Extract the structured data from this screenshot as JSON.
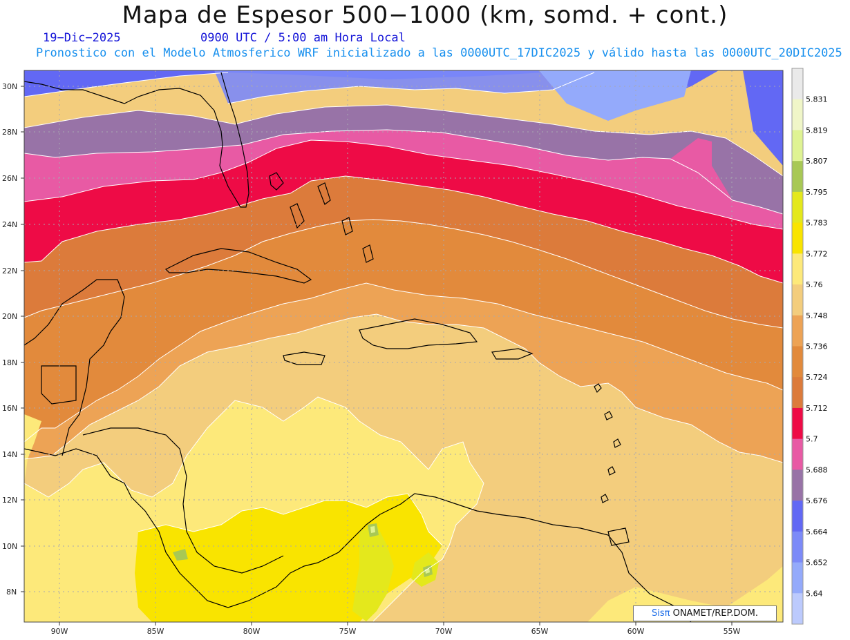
{
  "header": {
    "title": "Mapa de Espesor 500−1000 (km, somd. + cont.)",
    "date": "19−Dic−2025",
    "time": "0900 UTC / 5:00 am Hora Local",
    "model_info": "Pronostico con el Modelo Atmosferico WRF inicializado a las 0000UTC_17DIC2025 y válido hasta las  0000UTC_20DIC2025"
  },
  "axes": {
    "lat_labels": [
      "30N",
      "28N",
      "26N",
      "24N",
      "22N",
      "20N",
      "18N",
      "16N",
      "14N",
      "12N",
      "10N",
      "8N"
    ],
    "lon_labels": [
      "90W",
      "85W",
      "80W",
      "75W",
      "70W",
      "65W",
      "60W",
      "55W"
    ]
  },
  "colorbar": {
    "levels": [
      "5.831",
      "5.819",
      "5.807",
      "5.795",
      "5.783",
      "5.772",
      "5.76",
      "5.748",
      "5.736",
      "5.724",
      "5.712",
      "5.7",
      "5.688",
      "5.676",
      "5.664",
      "5.652",
      "5.64"
    ],
    "colors": [
      "#eaeaea",
      "#f0f6c8",
      "#dff393",
      "#a8c855",
      "#e4e81c",
      "#f9e400",
      "#fde97a",
      "#f3cd7d",
      "#eda355",
      "#e28a3c",
      "#dc7b3b",
      "#ee0b46",
      "#e85aa4",
      "#9873a7",
      "#6268f4",
      "#7c8af8",
      "#94aafb",
      "#bccafd"
    ]
  },
  "credit": {
    "logo": "Sis",
    "pi": "π",
    "text": " ONAMET/REP.DOM."
  },
  "colors": {
    "land_outline": "#000000",
    "grid": "#a8a8b0",
    "contour": "#ffffff"
  }
}
